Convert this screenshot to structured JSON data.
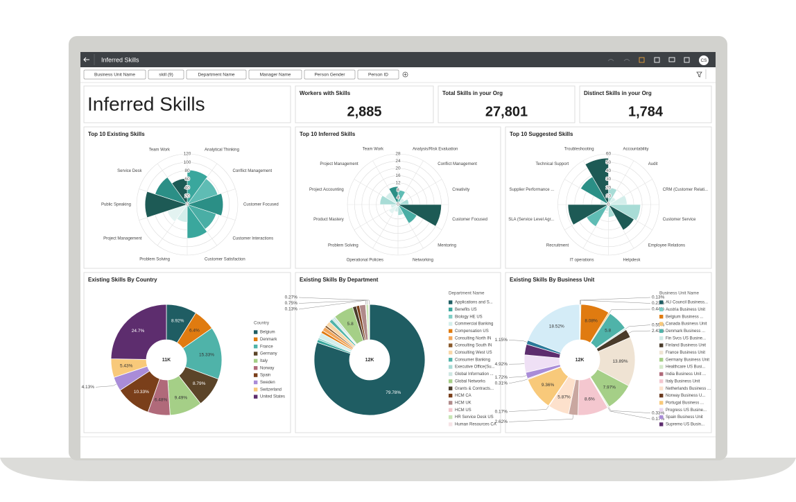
{
  "app_bar": {
    "title": "Inferred Skills",
    "avatar": "CS"
  },
  "filters": [
    "Business Unit Name",
    "skill (9)",
    "Department Name",
    "Manager Name",
    "Person Gender",
    "Person ID"
  ],
  "canvas_title": "Inferred Skills",
  "kpis": [
    {
      "label": "Workers with Skills",
      "value": "2,885"
    },
    {
      "label": "Total Skills in your Org",
      "value": "27,801"
    },
    {
      "label": "Distinct Skills in your Org",
      "value": "1,784"
    }
  ],
  "chart_data": [
    {
      "type": "polar-area",
      "title": "Top 10 Existing Skills",
      "categories": [
        "Analytical Thinking",
        "Conflict Management",
        "Customer Focused",
        "Customer Interactions",
        "Customer Satisfaction",
        "Problem Solving",
        "Project Management",
        "Public Speaking",
        "Service Desk",
        "Team Work"
      ],
      "values": [
        82,
        76,
        85,
        72,
        80,
        42,
        50,
        100,
        80,
        62
      ],
      "colors": [
        "#3aa79d",
        "#5fbcb4",
        "#2b8f86",
        "#4aaea5",
        "#3aa79d",
        "#d4eeeb",
        "#e3f3f1",
        "#1d5a55",
        "#2b8f86",
        "#1d5a55"
      ],
      "rlim": [
        0,
        120
      ],
      "rticks": [
        0,
        20,
        40,
        60,
        80,
        100,
        120
      ],
      "grid": true
    },
    {
      "type": "polar-area",
      "title": "Top 10 Inferred Skills",
      "categories": [
        "Analysis/Risk Evaluation",
        "Conflict Management",
        "Creativity",
        "Customer Focused",
        "Mentoring",
        "Networking",
        "Operational Policies",
        "Problem Solving",
        "Product Mastery",
        "Project Accounting",
        "Project Management",
        "Team Work"
      ],
      "values": [
        8,
        4,
        6,
        24,
        12,
        6,
        4,
        6,
        4,
        10,
        8,
        10
      ],
      "colors": [
        "#5fbcb4",
        "#d4eeeb",
        "#a8dcd6",
        "#1d5a55",
        "#4aaea5",
        "#a8dcd6",
        "#d4eeeb",
        "#e3f3f1",
        "#d4eeeb",
        "#a8dcd6",
        "#d4eeeb",
        "#2b8f86"
      ],
      "rlim": [
        0,
        28
      ],
      "rticks": [
        0,
        4,
        8,
        12,
        16,
        20,
        24,
        28
      ],
      "grid": true
    },
    {
      "type": "polar-area",
      "title": "Top 10 Suggested Skills",
      "categories": [
        "Accountability",
        "Audit",
        "CRM (Customer Relati...",
        "Customer Service",
        "Employee Relations",
        "Helpdesk",
        "IT operations",
        "Recruitment",
        "SLA (Service Level Agr...",
        "Supplier Performance ...",
        "Technical Support",
        "Troubleshooting"
      ],
      "values": [
        20,
        10,
        22,
        38,
        35,
        15,
        8,
        30,
        48,
        10,
        38,
        55
      ],
      "colors": [
        "#a8dcd6",
        "#d4eeeb",
        "#d4eeeb",
        "#a8dcd6",
        "#1d5a55",
        "#a8dcd6",
        "#d4eeeb",
        "#5fbcb4",
        "#1d5a55",
        "#d4eeeb",
        "#2b8f86",
        "#1d5a55"
      ],
      "rlim": [
        0,
        60
      ],
      "rticks": [
        0,
        10,
        20,
        30,
        40,
        50,
        60
      ],
      "grid": true
    },
    {
      "type": "donut",
      "title": "Existing Skills By Country",
      "center_label": "11K",
      "legend_title": "Country",
      "categories": [
        "Belgium",
        "Denmark",
        "France",
        "Germany",
        "Italy",
        "Norway",
        "Spain",
        "Sweden",
        "Switzerland",
        "United States"
      ],
      "values": [
        8.92,
        6.4,
        15.33,
        8.79,
        9.49,
        6.48,
        10.33,
        4.13,
        5.43,
        24.7
      ],
      "value_labels": [
        "8.92%",
        "6.4%",
        "15.33%",
        "8.79%",
        "9.49%",
        "6.48%",
        "10.33%",
        "4.13%",
        "5.43%",
        "24.7%"
      ],
      "colors": [
        "#1f5d63",
        "#e07b10",
        "#4fb3a9",
        "#5b4428",
        "#a5cf87",
        "#b06a7a",
        "#7a3f1a",
        "#a98cd8",
        "#f8c97a",
        "#5d2d6e"
      ]
    },
    {
      "type": "donut",
      "title": "Existing Skills By Department",
      "center_label": "12K",
      "legend_title": "Department Name",
      "categories": [
        "Applications and S...",
        "Benefits US",
        "Biology HE US",
        "Commercial Banking",
        "Compensation US",
        "Consulting North IN",
        "Consulting South IN",
        "Consulting West US",
        "Consumer Banking",
        "Executive Office(Su...",
        "Global Information ...",
        "Global Networks",
        "Grants & Contracts...",
        "HCM CA",
        "HCM UK",
        "HCM US",
        "HR Service Desk US",
        "Human Resources CA"
      ],
      "values": [
        79.78,
        0.9,
        0.5,
        1.6,
        0.8,
        1.2,
        0.6,
        1.4,
        1.0,
        0.4,
        0.7,
        5.8,
        1.1,
        0.9,
        1.8,
        0.13,
        0.75,
        0.27
      ],
      "value_labels": [
        "79.78%",
        null,
        null,
        null,
        null,
        null,
        null,
        null,
        null,
        null,
        null,
        "5.8",
        null,
        null,
        null,
        "0.13%",
        "0.75%",
        "0.27%"
      ],
      "colors": [
        "#1f5d63",
        "#3aa79d",
        "#7fcfc6",
        "#d4eeeb",
        "#e07b10",
        "#f2a65a",
        "#8a5a2b",
        "#f8d7a8",
        "#4fb3a9",
        "#a8dcd6",
        "#cfe7e3",
        "#a5cf87",
        "#4a3b2a",
        "#7a3f1a",
        "#b08a8a",
        "#f3c6cc",
        "#c8e6b5",
        "#f6e3e6"
      ]
    },
    {
      "type": "donut",
      "title": "Existing Skills By Business Unit",
      "center_label": "12K",
      "legend_title": "Business Unit Name",
      "categories": [
        "AU Council Business...",
        "Austria Business Unit",
        "Belgium Business ...",
        "Canada Business Unit",
        "Denmark Business ...",
        "Fin Svcs US Busine...",
        "Finland Business Unit",
        "France Business Unit",
        "Germany Business Unit",
        "Healthcare US Busi...",
        "India Business Unit ...",
        "Italy Business Unit",
        null,
        "Netherlands Business ...",
        "Norway Business U...",
        "Portugal Business ...",
        "Progress US Busine...",
        "Spain Business Unit",
        null,
        "Supremo US Busin...",
        null,
        null
      ],
      "values": [
        0.13,
        0.23,
        8.08,
        0.44,
        5.8,
        0.55,
        2.43,
        13.89,
        7.97,
        0.33,
        0.17,
        8.6,
        2.62,
        5.87,
        0.17,
        9.36,
        0.31,
        1.72,
        4.92,
        3.0,
        1.15,
        18.52
      ],
      "value_labels": [
        "0.13%",
        "0.23%",
        "8.08%",
        "0.44%",
        "5.8",
        "0.55%",
        "2.43%",
        "13.89%",
        "7.97%",
        "0.33%",
        "0.17%",
        "8.6%",
        "2.62%",
        "5.87%",
        "0.17%",
        "9.36%",
        "0.31%",
        "1.72%",
        "4.92%",
        null,
        "1.15%",
        "18.52%"
      ],
      "colors": [
        "#1f5d63",
        "#7ccfc6",
        "#e07b10",
        "#f8c97a",
        "#4fb3a9",
        "#cde9e5",
        "#4a3b2a",
        "#efe3d3",
        "#a5cf87",
        "#d5eacb",
        "#b06a7a",
        "#f4c7cf",
        "#c9a7a0",
        "#fde1cc",
        "#6b3a1f",
        "#f8c97a",
        "#e8d7f0",
        "#a98cd8",
        "#efe0f5",
        "#5d2d6e",
        "#2a7a9a",
        "#d4ecf7"
      ]
    }
  ]
}
